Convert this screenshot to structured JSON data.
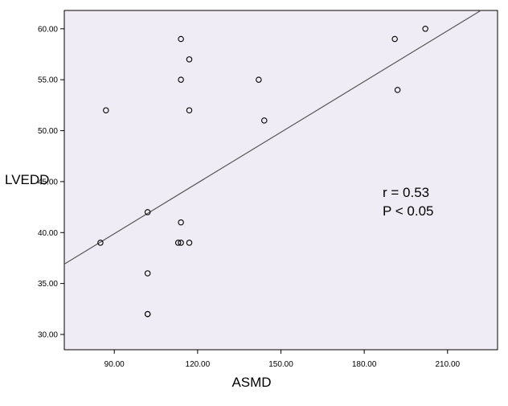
{
  "chart_data": {
    "type": "scatter",
    "xlabel": "ASMD",
    "ylabel": "LVEDD",
    "xlim": [
      72,
      228
    ],
    "ylim": [
      28.5,
      61.8
    ],
    "xticks": [
      90,
      120,
      150,
      180,
      210
    ],
    "xtick_labels": [
      "90.00",
      "120.00",
      "150.00",
      "180.00",
      "210.00"
    ],
    "yticks": [
      30,
      35,
      40,
      45,
      50,
      55,
      60
    ],
    "ytick_labels": [
      "30.00",
      "35.00",
      "40.00",
      "45.00",
      "50.00",
      "55.00",
      "60.00"
    ],
    "grid": false,
    "points": [
      {
        "x": 85,
        "y": 39
      },
      {
        "x": 87,
        "y": 52
      },
      {
        "x": 102,
        "y": 42
      },
      {
        "x": 102,
        "y": 36
      },
      {
        "x": 102,
        "y": 32
      },
      {
        "x": 102,
        "y": 32
      },
      {
        "x": 113,
        "y": 39
      },
      {
        "x": 114,
        "y": 39
      },
      {
        "x": 114,
        "y": 41
      },
      {
        "x": 114,
        "y": 55
      },
      {
        "x": 114,
        "y": 59
      },
      {
        "x": 117,
        "y": 57
      },
      {
        "x": 117,
        "y": 52
      },
      {
        "x": 117,
        "y": 39
      },
      {
        "x": 142,
        "y": 55
      },
      {
        "x": 144,
        "y": 51
      },
      {
        "x": 191,
        "y": 59
      },
      {
        "x": 192,
        "y": 54
      },
      {
        "x": 202,
        "y": 60
      }
    ],
    "fit_line": {
      "x1": 72,
      "y1": 36.9,
      "x2": 222,
      "y2": 61.8
    },
    "annotations": [
      "r = 0.53",
      "P < 0.05"
    ],
    "colors": {
      "background": "#f0ecf5",
      "marker": "#000000",
      "line": "#555555"
    }
  }
}
